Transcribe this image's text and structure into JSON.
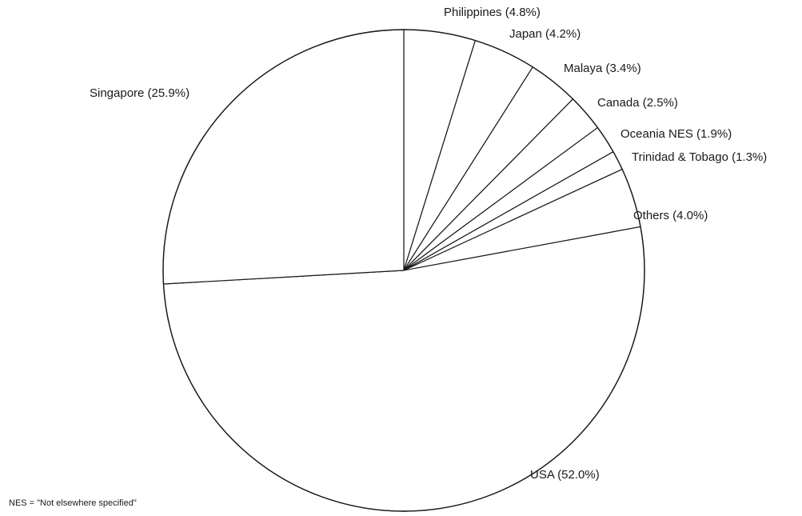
{
  "chart_data": {
    "type": "pie",
    "title": "",
    "slices": [
      {
        "label": "Philippines (4.8%)",
        "name": "Philippines",
        "value": 4.8
      },
      {
        "label": "Japan (4.2%)",
        "name": "Japan",
        "value": 4.2
      },
      {
        "label": "Malaya (3.4%)",
        "name": "Malaya",
        "value": 3.4
      },
      {
        "label": "Canada (2.5%)",
        "name": "Canada",
        "value": 2.5
      },
      {
        "label": "Oceania NES (1.9%)",
        "name": "Oceania NES",
        "value": 1.9
      },
      {
        "label": "Trinidad & Tobago (1.3%)",
        "name": "Trinidad & Tobago",
        "value": 1.3
      },
      {
        "label": "Others (4.0%)",
        "name": "Others",
        "value": 4.0
      },
      {
        "label": "USA (52.0%)",
        "name": "USA",
        "value": 52.0
      },
      {
        "label": "Singapore (25.9%)",
        "name": "Singapore",
        "value": 25.9
      }
    ],
    "start_angle_deg": 0,
    "direction": "clockwise",
    "fill_color": "#ffffff",
    "stroke_color": "#1a1a1a"
  },
  "footnote": "NES = \"Not elsewhere specified\""
}
